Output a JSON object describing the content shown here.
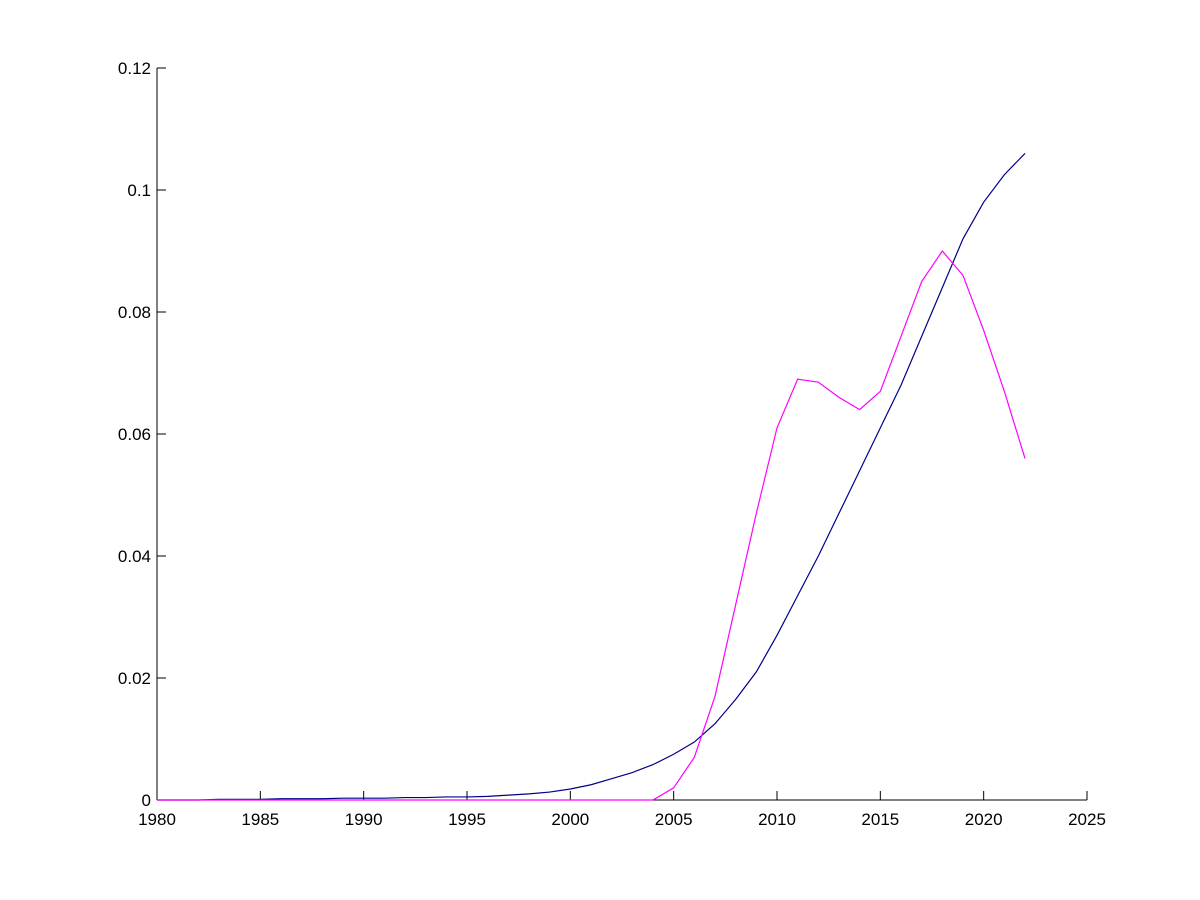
{
  "chart_data": {
    "type": "line",
    "x": [
      1980,
      1981,
      1982,
      1983,
      1984,
      1985,
      1986,
      1987,
      1988,
      1989,
      1990,
      1991,
      1992,
      1993,
      1994,
      1995,
      1996,
      1997,
      1998,
      1999,
      2000,
      2001,
      2002,
      2003,
      2004,
      2005,
      2006,
      2007,
      2008,
      2009,
      2010,
      2011,
      2012,
      2013,
      2014,
      2015,
      2016,
      2017,
      2018,
      2019,
      2020,
      2021,
      2022
    ],
    "series": [
      {
        "color": "#00008b",
        "values": [
          0,
          0,
          0,
          0.0001,
          0.0001,
          0.0001,
          0.0002,
          0.0002,
          0.0002,
          0.0003,
          0.0003,
          0.0003,
          0.0004,
          0.0004,
          0.0005,
          0.0005,
          0.0006,
          0.0008,
          0.001,
          0.0013,
          0.0018,
          0.0025,
          0.0035,
          0.0045,
          0.0058,
          0.0075,
          0.0095,
          0.0125,
          0.0165,
          0.021,
          0.027,
          0.0335,
          0.04,
          0.047,
          0.054,
          0.061,
          0.068,
          0.076,
          0.084,
          0.092,
          0.098,
          0.1025,
          0.106
        ]
      },
      {
        "color": "#ff00ff",
        "values": [
          0,
          0,
          0,
          0,
          0,
          0,
          0,
          0,
          0,
          0,
          0,
          0,
          0,
          0,
          0,
          0,
          0,
          0,
          0,
          0,
          0,
          0,
          0,
          0,
          0,
          0.002,
          0.007,
          0.017,
          0.032,
          0.047,
          0.061,
          0.069,
          0.0685,
          0.066,
          0.064,
          0.067,
          0.076,
          0.085,
          0.09,
          0.086,
          0.077,
          0.067,
          0.056
        ]
      }
    ],
    "xlim": [
      1980,
      2025
    ],
    "xticks": [
      1980,
      1985,
      1990,
      1995,
      2000,
      2005,
      2010,
      2015,
      2020,
      2025
    ],
    "ylim": [
      0,
      0.12
    ],
    "yticks": [
      0,
      0.02,
      0.04,
      0.06,
      0.08,
      0.1,
      0.12
    ],
    "grid": false
  }
}
